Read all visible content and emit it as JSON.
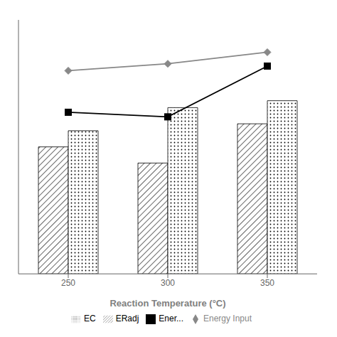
{
  "chart_data": {
    "type": "bar",
    "xlabel": "Reaction Temperature (°C)",
    "categories": [
      "250",
      "300",
      "350"
    ],
    "series": [
      {
        "name": "ERadj",
        "type": "bar",
        "color": "#ffffff",
        "values": [
          55,
          48,
          65
        ]
      },
      {
        "name": "EC",
        "type": "bar",
        "color": "#ffffff",
        "values": [
          62,
          72,
          75
        ]
      },
      {
        "name": "Energy Input",
        "type": "line",
        "color": "#888888",
        "marker": "diamond",
        "values": [
          88,
          91,
          96
        ]
      },
      {
        "name": "Ener...",
        "type": "line",
        "color": "#000000",
        "marker": "square",
        "values": [
          70,
          68,
          90
        ]
      }
    ],
    "ylim": [
      0,
      110
    ],
    "tick_labels": "x",
    "grid": false,
    "legend": "bottom"
  }
}
